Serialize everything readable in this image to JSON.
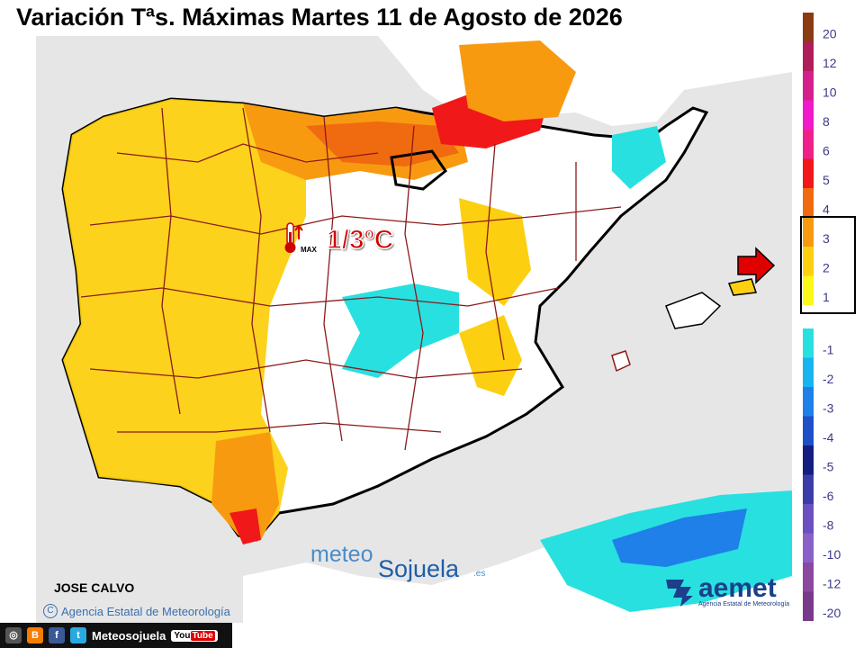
{
  "title": "Variación Tªs. Máximas Martes 11 de Agosto de 2026",
  "highlight_label": "1/3ºC",
  "thermometer_icon": "thermometer-max-icon",
  "thermometer_label": "MAX",
  "author": "JOSE CALVO",
  "copyright": "Agencia Estatal de Meteorología",
  "footer": {
    "brand": "Meteosojuela",
    "youtube_a": "You",
    "youtube_b": "Tube"
  },
  "watermark": {
    "meteo": "meteo",
    "sojuela": "Sojuela",
    "tld": ".es"
  },
  "aemet": {
    "name": "aemet",
    "subtitle": "Agencia Estatal de Meteorología"
  },
  "legend": {
    "positive": [
      {
        "label": "20",
        "color": "#8b3b12"
      },
      {
        "label": "12",
        "color": "#b01e5a"
      },
      {
        "label": "10",
        "color": "#d4208c"
      },
      {
        "label": "8",
        "color": "#f01aca"
      },
      {
        "label": "6",
        "color": "#f0208a"
      },
      {
        "label": "5",
        "color": "#f01818"
      },
      {
        "label": "4",
        "color": "#f06a10"
      },
      {
        "label": "3",
        "color": "#f89a10"
      },
      {
        "label": "2",
        "color": "#fcd010"
      },
      {
        "label": "1",
        "color": "#fcf818"
      }
    ],
    "negative": [
      {
        "label": "-1",
        "color": "#28e0e0"
      },
      {
        "label": "-2",
        "color": "#18b4f0"
      },
      {
        "label": "-3",
        "color": "#1e80e8"
      },
      {
        "label": "-4",
        "color": "#1e50c8"
      },
      {
        "label": "-5",
        "color": "#141e80"
      },
      {
        "label": "-6",
        "color": "#3c3ca8"
      },
      {
        "label": "-8",
        "color": "#6a50c0"
      },
      {
        "label": "-10",
        "color": "#8a60c8"
      },
      {
        "label": "-12",
        "color": "#8a48a0"
      },
      {
        "label": "-20",
        "color": "#7a3a8c"
      }
    ],
    "highlighted_range": [
      "1",
      "3"
    ]
  }
}
